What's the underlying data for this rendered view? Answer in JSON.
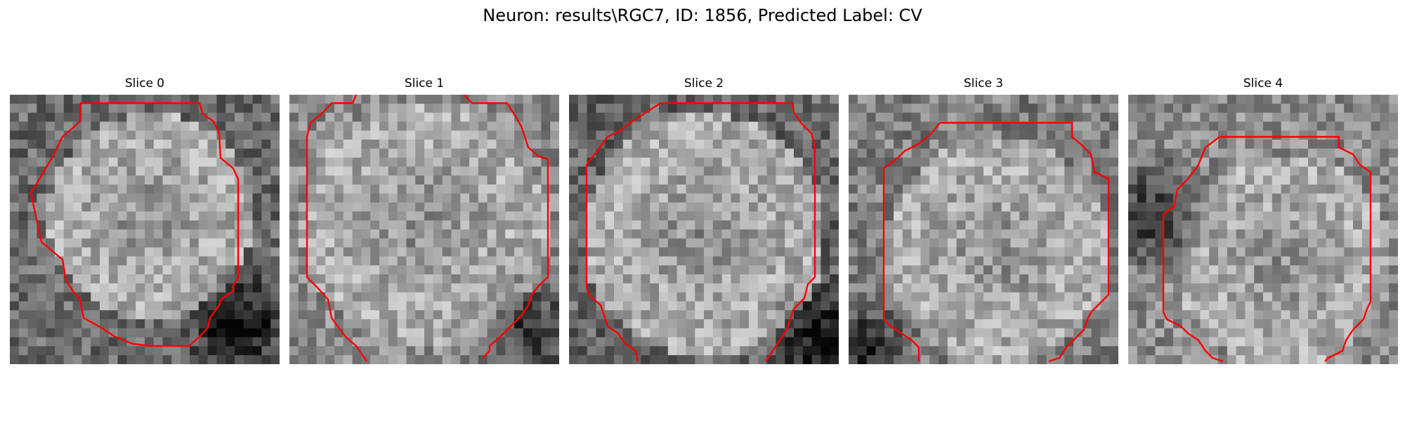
{
  "figure": {
    "title": "Neuron: results\\RGC7, ID: 1856, Predicted Label: CV",
    "contour_color": "#ff0000"
  },
  "panels": [
    {
      "title": "Slice 0"
    },
    {
      "title": "Slice 1"
    },
    {
      "title": "Slice 2"
    },
    {
      "title": "Slice 3"
    },
    {
      "title": "Slice 4"
    }
  ]
}
